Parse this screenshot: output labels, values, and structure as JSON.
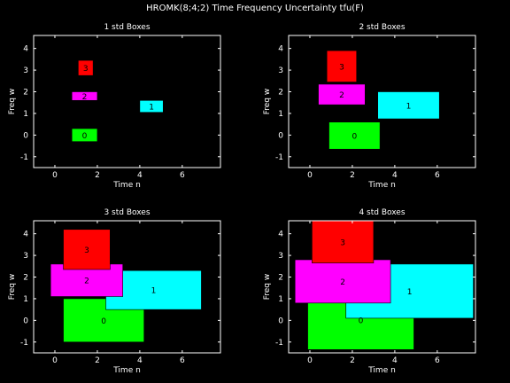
{
  "figure": {
    "title": "HROMK(8;4;2) Time Frequency Uncertainty tfu(F)"
  },
  "chart_data": [
    {
      "type": "box",
      "title": "1 std Boxes",
      "xlabel": "Time n",
      "ylabel": "Freq w",
      "xlim": [
        -1,
        7.8
      ],
      "ylim": [
        -1.5,
        4.6
      ],
      "xticks": [
        0,
        2,
        4,
        6
      ],
      "yticks": [
        -1,
        0,
        1,
        2,
        3,
        4
      ],
      "boxes": [
        {
          "label": "0",
          "color": "#00ff00",
          "x": [
            0.8,
            2.0
          ],
          "y": [
            -0.3,
            0.3
          ]
        },
        {
          "label": "1",
          "color": "#00ffff",
          "x": [
            4.0,
            5.1
          ],
          "y": [
            1.05,
            1.6
          ]
        },
        {
          "label": "2",
          "color": "#ff00ff",
          "x": [
            0.8,
            2.0
          ],
          "y": [
            1.6,
            2.0
          ]
        },
        {
          "label": "3",
          "color": "#ff0000",
          "x": [
            1.1,
            1.8
          ],
          "y": [
            2.75,
            3.45
          ]
        }
      ]
    },
    {
      "type": "box",
      "title": "2 std Boxes",
      "xlabel": "Time n",
      "ylabel": "Freq w",
      "xlim": [
        -1,
        7.8
      ],
      "ylim": [
        -1.5,
        4.6
      ],
      "xticks": [
        0,
        2,
        4,
        6
      ],
      "yticks": [
        -1,
        0,
        1,
        2,
        3,
        4
      ],
      "boxes": [
        {
          "label": "0",
          "color": "#00ff00",
          "x": [
            0.9,
            3.3
          ],
          "y": [
            -0.65,
            0.6
          ]
        },
        {
          "label": "1",
          "color": "#00ffff",
          "x": [
            3.2,
            6.1
          ],
          "y": [
            0.75,
            2.0
          ]
        },
        {
          "label": "2",
          "color": "#ff00ff",
          "x": [
            0.4,
            2.6
          ],
          "y": [
            1.4,
            2.35
          ]
        },
        {
          "label": "3",
          "color": "#ff0000",
          "x": [
            0.8,
            2.2
          ],
          "y": [
            2.45,
            3.9
          ]
        }
      ]
    },
    {
      "type": "box",
      "title": "3 std Boxes",
      "xlabel": "Time n",
      "ylabel": "Freq w",
      "xlim": [
        -1,
        7.8
      ],
      "ylim": [
        -1.5,
        4.6
      ],
      "xticks": [
        0,
        2,
        4,
        6
      ],
      "yticks": [
        -1,
        0,
        1,
        2,
        3,
        4
      ],
      "boxes": [
        {
          "label": "0",
          "color": "#00ff00",
          "x": [
            0.4,
            4.2
          ],
          "y": [
            -1.0,
            1.0
          ]
        },
        {
          "label": "1",
          "color": "#00ffff",
          "x": [
            2.4,
            6.9
          ],
          "y": [
            0.5,
            2.3
          ]
        },
        {
          "label": "2",
          "color": "#ff00ff",
          "x": [
            -0.2,
            3.2
          ],
          "y": [
            1.1,
            2.6
          ]
        },
        {
          "label": "3",
          "color": "#ff0000",
          "x": [
            0.4,
            2.6
          ],
          "y": [
            2.35,
            4.2
          ]
        }
      ]
    },
    {
      "type": "box",
      "title": "4 std Boxes",
      "xlabel": "Time n",
      "ylabel": "Freq w",
      "xlim": [
        -1,
        7.8
      ],
      "ylim": [
        -1.5,
        4.6
      ],
      "xticks": [
        0,
        2,
        4,
        6
      ],
      "yticks": [
        -1,
        0,
        1,
        2,
        3,
        4
      ],
      "boxes": [
        {
          "label": "0",
          "color": "#00ff00",
          "x": [
            -0.1,
            4.9
          ],
          "y": [
            -1.35,
            1.4
          ]
        },
        {
          "label": "1",
          "color": "#00ffff",
          "x": [
            1.7,
            7.7
          ],
          "y": [
            0.1,
            2.6
          ]
        },
        {
          "label": "2",
          "color": "#ff00ff",
          "x": [
            -0.7,
            3.8
          ],
          "y": [
            0.8,
            2.8
          ]
        },
        {
          "label": "3",
          "color": "#ff0000",
          "x": [
            0.1,
            3.0
          ],
          "y": [
            2.65,
            4.6
          ]
        }
      ]
    }
  ]
}
